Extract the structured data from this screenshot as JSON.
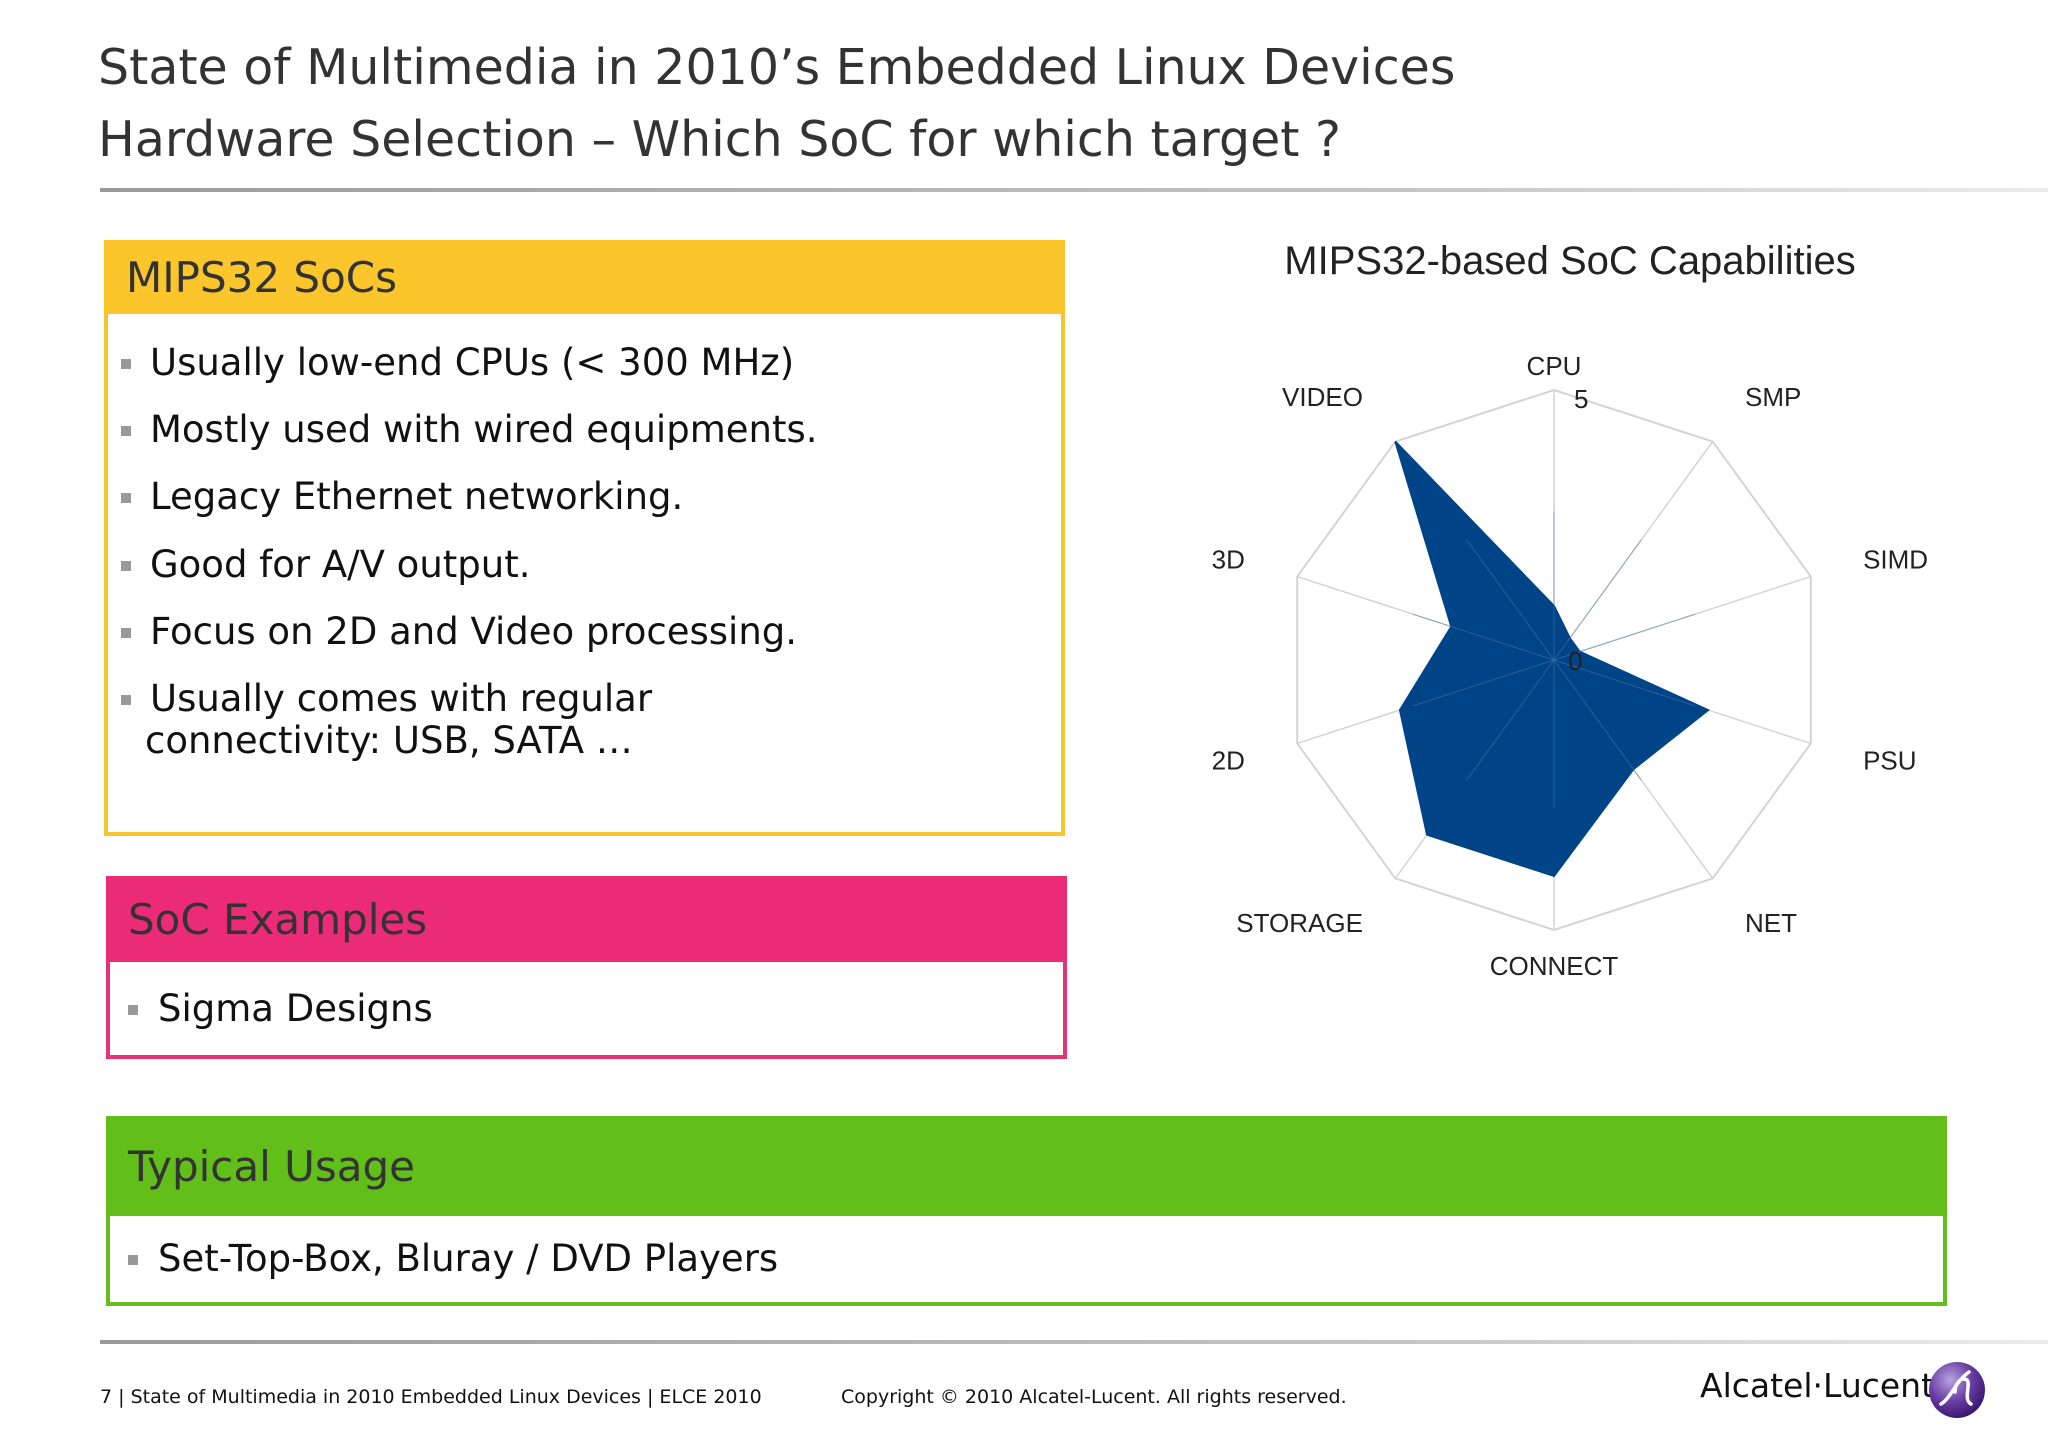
{
  "header": {
    "title_line1": "State of Multimedia in 2010’s Embedded Linux Devices",
    "title_line2": "Hardware Selection – Which SoC for which target ?"
  },
  "mips_box": {
    "heading": "MIPS32 SoCs",
    "bullets": [
      [
        "Usually low-end CPUs (< 300 MHz)"
      ],
      [
        "Mostly used with wired equipments."
      ],
      [
        "Legacy Ethernet networking."
      ],
      [
        "Good for A/V output."
      ],
      [
        "Focus on 2D and Video processing."
      ],
      [
        "Usually comes with regular",
        "connectivity: USB, SATA …"
      ]
    ]
  },
  "examples_box": {
    "heading": "SoC Examples",
    "bullets": [
      "Sigma Designs"
    ]
  },
  "usage_box": {
    "heading": "Typical Usage",
    "bullets": [
      "Set-Top-Box, Bluray / DVD Players"
    ]
  },
  "chart_data": {
    "type": "radar",
    "title": "MIPS32-based SoC Capabilities",
    "categories": [
      "CPU",
      "SMP",
      "SIMD",
      "PSU",
      "NET",
      "CONNECT",
      "STORAGE",
      "2D",
      "3D",
      "VIDEO"
    ],
    "series": [
      {
        "values": [
          1,
          0.5,
          0.5,
          3,
          2.5,
          4,
          4,
          3,
          2,
          5
        ]
      }
    ],
    "rlim": [
      0,
      5
    ],
    "tick_labels": [
      "0",
      "5"
    ],
    "grid": true,
    "fill_color": "#004488"
  },
  "footer": {
    "left": "7 | State of Multimedia in 2010 Embedded Linux Devices | ELCE 2010",
    "center": "Copyright © 2010 Alcatel-Lucent. All rights reserved.",
    "brand": "Alcatel·Lucent"
  },
  "colors": {
    "yellow": "#fbc52c",
    "pink": "#eb2b78",
    "green": "#62bf1a",
    "logo_purple": "#5c2d91"
  }
}
